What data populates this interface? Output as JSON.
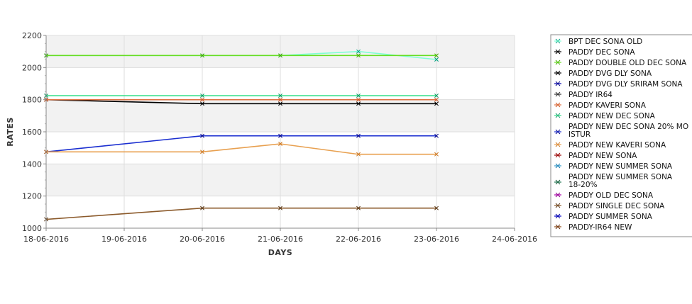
{
  "chart_data": {
    "type": "line",
    "title": "",
    "xlabel": "DAYS",
    "ylabel": "RATES",
    "x_ticks": [
      "18-06-2016",
      "19-06-2016",
      "20-06-2016",
      "21-06-2016",
      "22-06-2016",
      "23-06-2016",
      "24-06-2016"
    ],
    "y_ticks": [
      1000,
      1200,
      1400,
      1600,
      1800,
      2000,
      2200
    ],
    "ylim": [
      1000,
      2200
    ],
    "x_range": [
      "18-06-2016",
      "24-06-2016"
    ],
    "grid": true,
    "background_bands": "alternating white / light gray",
    "legend_position": "right",
    "series": [
      {
        "name": "BPT DEC SONA OLD",
        "color": "#7fffd4",
        "marker": "#00a080",
        "points": [
          [
            "18-06-2016",
            2075
          ],
          [
            "20-06-2016",
            2075
          ],
          [
            "21-06-2016",
            2075
          ],
          [
            "22-06-2016",
            2100
          ],
          [
            "23-06-2016",
            2050
          ]
        ]
      },
      {
        "name": "PADDY DEC SONA",
        "color": "#000000",
        "marker": "#000000",
        "points": [
          [
            "18-06-2016",
            1800
          ],
          [
            "20-06-2016",
            1775
          ],
          [
            "21-06-2016",
            1775
          ],
          [
            "22-06-2016",
            1775
          ],
          [
            "23-06-2016",
            1775
          ]
        ]
      },
      {
        "name": "PADDY DOUBLE OLD DEC SONA",
        "color": "#66dd22",
        "marker": "#44aa00",
        "points": [
          [
            "18-06-2016",
            2075
          ],
          [
            "20-06-2016",
            2075
          ],
          [
            "21-06-2016",
            2075
          ],
          [
            "22-06-2016",
            2075
          ],
          [
            "23-06-2016",
            2075
          ]
        ]
      },
      {
        "name": "PADDY DVG DLY SONA",
        "color": "#000000",
        "marker": "#000000",
        "points": []
      },
      {
        "name": "PADDY DVG DLY SRIRAM SONA",
        "color": "#0000aa",
        "marker": "#000088",
        "points": []
      },
      {
        "name": "PADDY IR64",
        "color": "#333333",
        "marker": "#333333",
        "points": []
      },
      {
        "name": "PADDY KAVERI SONA",
        "color": "#e07040",
        "marker": "#cc5522",
        "points": [
          [
            "18-06-2016",
            1800
          ],
          [
            "20-06-2016",
            1800
          ],
          [
            "21-06-2016",
            1800
          ],
          [
            "22-06-2016",
            1800
          ],
          [
            "23-06-2016",
            1800
          ]
        ]
      },
      {
        "name": "PADDY NEW DEC SONA",
        "color": "#33dd88",
        "marker": "#119966",
        "points": [
          [
            "18-06-2016",
            1825
          ],
          [
            "20-06-2016",
            1825
          ],
          [
            "21-06-2016",
            1825
          ],
          [
            "22-06-2016",
            1825
          ],
          [
            "23-06-2016",
            1825
          ]
        ]
      },
      {
        "name": "PADDY NEW DEC SONA 20% MO ISTUR",
        "color": "#1a2ed0",
        "marker": "#000088",
        "points": [
          [
            "18-06-2016",
            1475
          ],
          [
            "20-06-2016",
            1575
          ],
          [
            "21-06-2016",
            1575
          ],
          [
            "22-06-2016",
            1575
          ],
          [
            "23-06-2016",
            1575
          ]
        ]
      },
      {
        "name": "PADDY NEW KAVERI SONA",
        "color": "#e8a050",
        "marker": "#cc7722",
        "points": [
          [
            "18-06-2016",
            1475
          ],
          [
            "20-06-2016",
            1475
          ],
          [
            "21-06-2016",
            1525
          ],
          [
            "22-06-2016",
            1460
          ],
          [
            "23-06-2016",
            1460
          ]
        ]
      },
      {
        "name": "PADDY NEW SONA",
        "color": "#990000",
        "marker": "#990000",
        "points": []
      },
      {
        "name": "PADDY NEW SUMMER SONA",
        "color": "#3399cc",
        "marker": "#1177aa",
        "points": []
      },
      {
        "name": "PADDY NEW SUMMER SONA 18-20%",
        "color": "#227755",
        "marker": "#115533",
        "points": []
      },
      {
        "name": "PADDY OLD DEC SONA",
        "color": "#aa00aa",
        "marker": "#880088",
        "points": []
      },
      {
        "name": "PADDY SINGLE DEC SONA",
        "color": "#8b5a2b",
        "marker": "#553311",
        "points": [
          [
            "18-06-2016",
            1055
          ],
          [
            "20-06-2016",
            1125
          ],
          [
            "21-06-2016",
            1125
          ],
          [
            "22-06-2016",
            1125
          ],
          [
            "23-06-2016",
            1125
          ]
        ]
      },
      {
        "name": "PADDY SUMMER SONA",
        "color": "#0000cc",
        "marker": "#000099",
        "points": []
      },
      {
        "name": "PADDY-IR64 NEW",
        "color": "#8b4513",
        "marker": "#663311",
        "points": []
      }
    ]
  }
}
